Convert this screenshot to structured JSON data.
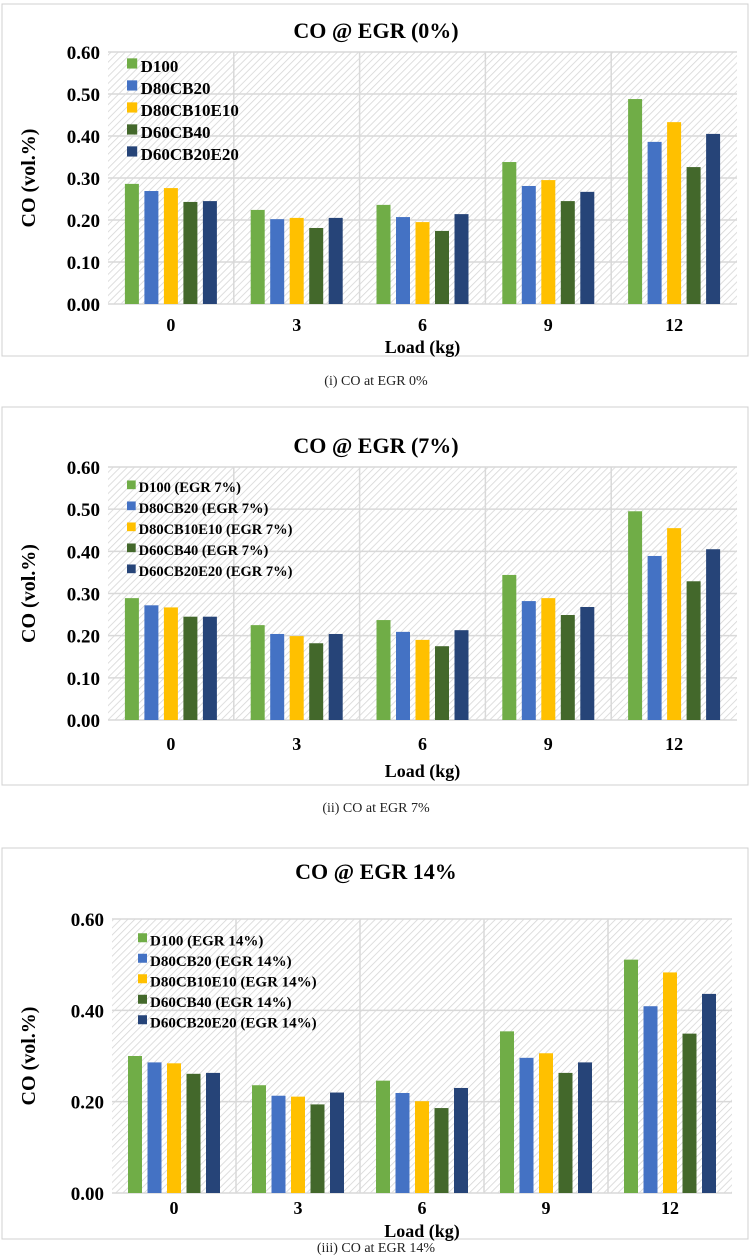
{
  "colors": [
    "#70ad47",
    "#4472c4",
    "#ffc000",
    "#43682b",
    "#264478"
  ],
  "captions": [
    "(i)    CO at EGR 0%",
    "(ii)   CO at EGR 7%",
    "(iii)        CO at EGR 14%"
  ],
  "chart_data": [
    {
      "type": "bar",
      "title": "CO @ EGR (0%)",
      "xlabel": "Load (kg)",
      "ylabel": "CO (vol.%)",
      "categories": [
        "0",
        "3",
        "6",
        "9",
        "12"
      ],
      "ylim": [
        0,
        0.6
      ],
      "yticks": [
        "0.00",
        "0.10",
        "0.20",
        "0.30",
        "0.40",
        "0.50",
        "0.60"
      ],
      "grid": true,
      "legend_position": "top-left",
      "series": [
        {
          "name": "D100",
          "values": [
            0.286,
            0.224,
            0.236,
            0.338,
            0.488
          ]
        },
        {
          "name": "D80CB20",
          "values": [
            0.269,
            0.202,
            0.207,
            0.281,
            0.386
          ]
        },
        {
          "name": "D80CB10E10",
          "values": [
            0.276,
            0.205,
            0.195,
            0.295,
            0.433
          ]
        },
        {
          "name": "D60CB40",
          "values": [
            0.243,
            0.181,
            0.174,
            0.245,
            0.326
          ]
        },
        {
          "name": "D60CB20E20",
          "values": [
            0.245,
            0.205,
            0.214,
            0.267,
            0.405
          ]
        }
      ]
    },
    {
      "type": "bar",
      "title": "CO @ EGR (7%)",
      "xlabel": "Load (kg)",
      "ylabel": "CO (vol.%)",
      "categories": [
        "0",
        "3",
        "6",
        "9",
        "12"
      ],
      "ylim": [
        0,
        0.6
      ],
      "yticks": [
        "0.00",
        "0.10",
        "0.20",
        "0.30",
        "0.40",
        "0.50",
        "0.60"
      ],
      "grid": true,
      "legend_position": "top-left",
      "series": [
        {
          "name": "D100 (EGR 7%)",
          "values": [
            0.289,
            0.225,
            0.237,
            0.344,
            0.495
          ]
        },
        {
          "name": "D80CB20 (EGR 7%)",
          "values": [
            0.272,
            0.204,
            0.209,
            0.282,
            0.389
          ]
        },
        {
          "name": "D80CB10E10 (EGR 7%)",
          "values": [
            0.267,
            0.199,
            0.19,
            0.289,
            0.455
          ]
        },
        {
          "name": "D60CB40 (EGR 7%)",
          "values": [
            0.245,
            0.182,
            0.175,
            0.249,
            0.329
          ]
        },
        {
          "name": "D60CB20E20 (EGR 7%)",
          "values": [
            0.245,
            0.204,
            0.213,
            0.268,
            0.405
          ]
        }
      ]
    },
    {
      "type": "bar",
      "title": "CO @ EGR 14%",
      "xlabel": "Load (kg)",
      "ylabel": "CO (vol.%)",
      "categories": [
        "0",
        "3",
        "6",
        "9",
        "12"
      ],
      "ylim": [
        0,
        0.6
      ],
      "yticks": [
        "0.00",
        "0.20",
        "0.40",
        "0.60"
      ],
      "grid": true,
      "legend_position": "top-left",
      "series": [
        {
          "name": "D100 (EGR 14%)",
          "values": [
            0.3,
            0.236,
            0.246,
            0.354,
            0.511
          ]
        },
        {
          "name": "D80CB20 (EGR 14%)",
          "values": [
            0.286,
            0.213,
            0.219,
            0.296,
            0.409
          ]
        },
        {
          "name": "D80CB10E10 (EGR 14%)",
          "values": [
            0.284,
            0.211,
            0.201,
            0.306,
            0.483
          ]
        },
        {
          "name": "D60CB40 (EGR 14%)",
          "values": [
            0.261,
            0.194,
            0.186,
            0.263,
            0.349
          ]
        },
        {
          "name": "D60CB20E20 (EGR 14%)",
          "values": [
            0.263,
            0.22,
            0.23,
            0.286,
            0.436
          ]
        }
      ]
    }
  ]
}
